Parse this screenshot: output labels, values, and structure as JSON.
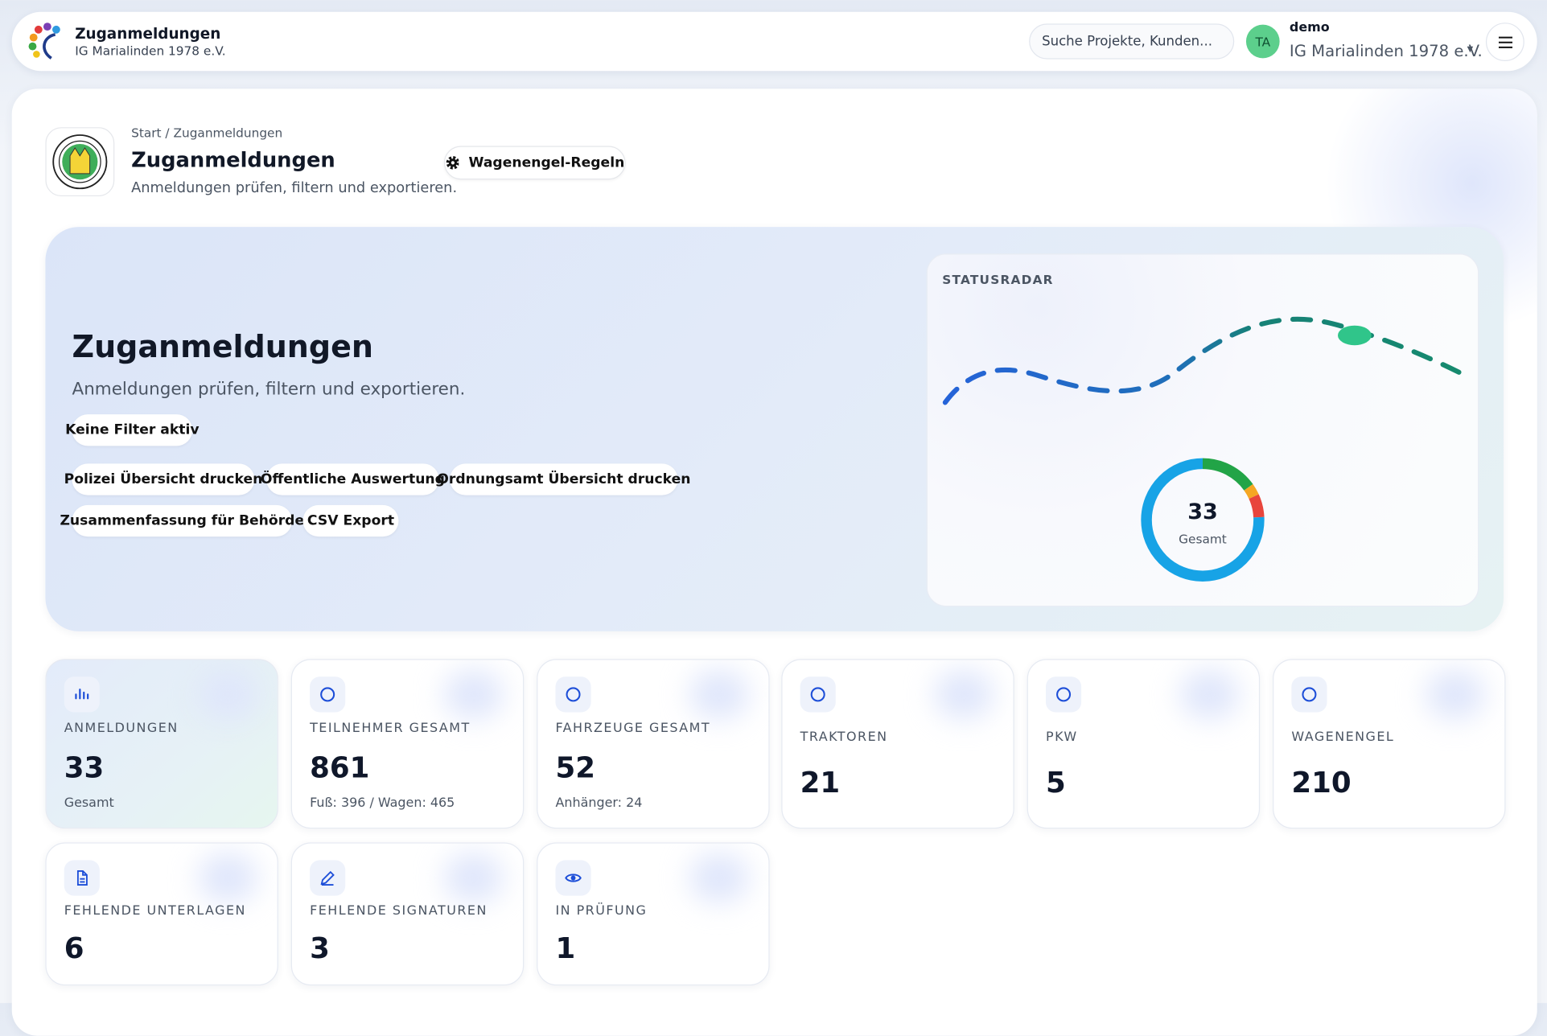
{
  "header": {
    "app_title": "Zuganmeldungen",
    "org": "IG Marialinden 1978 e.V.",
    "search_placeholder": "Suche Projekte, Kunden...",
    "avatar_initials": "TA",
    "user_name": "demo",
    "user_org": "IG Marialinden 1978 e.V."
  },
  "page": {
    "breadcrumb": "Start / Zuganmeldungen",
    "title": "Zuganmeldungen",
    "subtitle": "Anmeldungen prüfen, filtern und exportieren.",
    "rules_button": "Wagenengel-Regeln"
  },
  "hero": {
    "title": "Zuganmeldungen",
    "subtitle": "Anmeldungen prüfen, filtern und exportieren.",
    "filter_status": "Keine Filter aktiv",
    "actions": [
      "Polizei Übersicht drucken",
      "Öffentliche Auswertung",
      "Ordnungsamt Übersicht drucken",
      "Zusammenfassung für Behörde",
      "CSV Export"
    ]
  },
  "status_radar": {
    "label": "STATUSRADAR",
    "total": 33,
    "total_label": "Gesamt",
    "segments": [
      {
        "value": 5,
        "color": "#22a447"
      },
      {
        "value": 1,
        "color": "#f5a623"
      },
      {
        "value": 2,
        "color": "#e8453c"
      },
      {
        "value": 25,
        "color": "#17a3e6"
      }
    ]
  },
  "stats": [
    {
      "label": "ANMELDUNGEN",
      "value": 33,
      "sub": "Gesamt"
    },
    {
      "label": "TEILNEHMER GESAMT",
      "value": 861,
      "sub": "Fuß: 396 / Wagen: 465"
    },
    {
      "label": "FAHRZEUGE GESAMT",
      "value": 52,
      "sub": "Anhänger: 24"
    },
    {
      "label": "TRAKTOREN",
      "value": 21
    },
    {
      "label": "PKW",
      "value": 5
    },
    {
      "label": "WAGENENGEL",
      "value": 210
    },
    {
      "label": "FEHLENDE UNTERLAGEN",
      "value": 6
    },
    {
      "label": "FEHLENDE SIGNATUREN",
      "value": 3
    },
    {
      "label": "IN PRÜFUNG",
      "value": 1
    }
  ]
}
